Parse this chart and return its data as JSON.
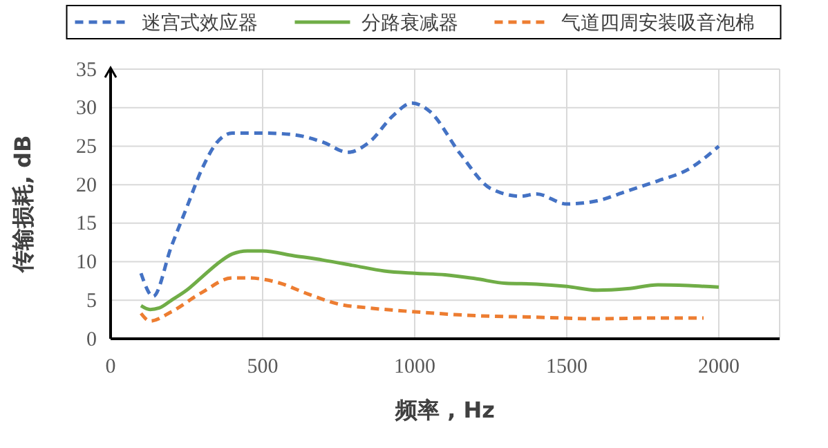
{
  "chart_data": {
    "type": "line",
    "xlabel": "频率 , Hz",
    "ylabel": "传输损耗, dB",
    "xlim": [
      0,
      2200
    ],
    "xticks": [
      0,
      500,
      1000,
      1500,
      2000
    ],
    "ylim": [
      0,
      35
    ],
    "yticks": [
      0,
      5,
      10,
      15,
      20,
      25,
      30,
      35
    ],
    "grid": true,
    "legend": "top",
    "marker": "none",
    "series": [
      {
        "name": "迷宫式效应器",
        "color": "#4472c4",
        "line_style": "dashed",
        "x": [
          100,
          140,
          200,
          250,
          300,
          350,
          400,
          500,
          600,
          700,
          780,
          850,
          930,
          990,
          1050,
          1150,
          1250,
          1350,
          1400,
          1500,
          1600,
          1700,
          1800,
          1900,
          2000
        ],
        "values": [
          8.5,
          5.5,
          12,
          17,
          22,
          25.5,
          26.7,
          26.7,
          26.5,
          25.5,
          24.2,
          25.5,
          29,
          30.6,
          29.5,
          24,
          19.5,
          18.5,
          18.8,
          17.5,
          17.9,
          19.2,
          20.5,
          22,
          25
        ]
      },
      {
        "name": "分路衰减器",
        "color": "#70ad47",
        "line_style": "solid",
        "x": [
          100,
          130,
          160,
          200,
          250,
          300,
          350,
          400,
          450,
          500,
          600,
          700,
          800,
          900,
          1000,
          1100,
          1200,
          1300,
          1400,
          1500,
          1600,
          1700,
          1800,
          1900,
          2000
        ],
        "values": [
          4.3,
          3.8,
          4,
          5,
          6.3,
          8,
          9.7,
          11,
          11.4,
          11.4,
          10.8,
          10.2,
          9.5,
          8.8,
          8.5,
          8.3,
          7.8,
          7.2,
          7.1,
          6.8,
          6.3,
          6.5,
          7,
          6.9,
          6.7
        ]
      },
      {
        "name": "气道四周安装吸音泡棉",
        "color": "#ed7d31",
        "line_style": "dashed",
        "x": [
          100,
          130,
          200,
          300,
          400,
          450,
          550,
          650,
          750,
          850,
          1000,
          1200,
          1400,
          1600,
          1800,
          1950
        ],
        "values": [
          3.3,
          2.3,
          3.5,
          6,
          7.9,
          7.9,
          7.3,
          5.8,
          4.5,
          4,
          3.5,
          3,
          2.8,
          2.6,
          2.7,
          2.7
        ]
      }
    ]
  }
}
